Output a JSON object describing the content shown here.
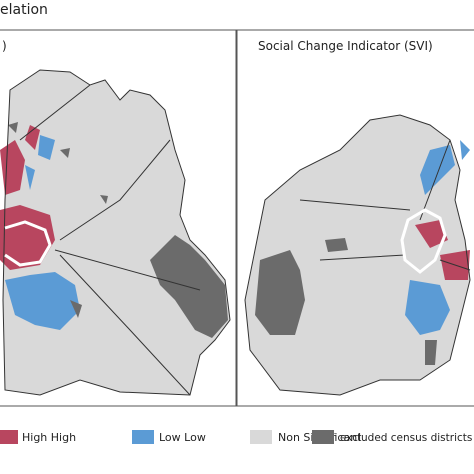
{
  "header": {
    "title": "elation"
  },
  "panels": [
    {
      "title": ")"
    },
    {
      "title": "Social Change Indicator (SVI)"
    }
  ],
  "legend": [
    {
      "label": "High High",
      "color": "#b8465f"
    },
    {
      "label": "Low Low",
      "color": "#5b9bd5"
    },
    {
      "label": "Non Significant",
      "color": "#d9d9d9"
    },
    {
      "label": "excluded census districts",
      "color": "#6b6b6b"
    }
  ]
}
